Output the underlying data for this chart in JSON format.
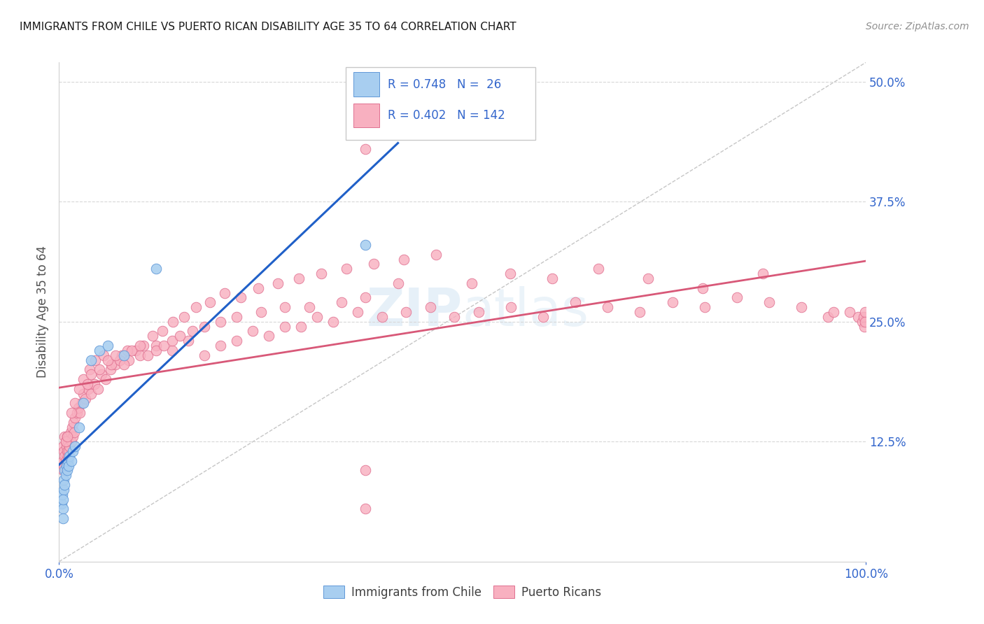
{
  "title": "IMMIGRANTS FROM CHILE VS PUERTO RICAN DISABILITY AGE 35 TO 64 CORRELATION CHART",
  "source": "Source: ZipAtlas.com",
  "ylabel": "Disability Age 35 to 64",
  "xlim": [
    0.0,
    1.0
  ],
  "ylim": [
    0.0,
    0.52
  ],
  "xtick_positions": [
    0.0,
    1.0
  ],
  "xtick_labels": [
    "0.0%",
    "100.0%"
  ],
  "ytick_positions": [
    0.125,
    0.25,
    0.375,
    0.5
  ],
  "ytick_labels": [
    "12.5%",
    "25.0%",
    "37.5%",
    "50.0%"
  ],
  "color_blue_fill": "#a8cef0",
  "color_blue_edge": "#6098d8",
  "color_pink_fill": "#f8b0c0",
  "color_pink_edge": "#e07090",
  "color_line_blue": "#2060c8",
  "color_line_pink": "#d85878",
  "color_grid": "#d8d8d8",
  "color_diag": "#c0c0c0",
  "color_axis_text": "#3366cc",
  "color_title": "#1a1a1a",
  "color_source": "#909090",
  "color_ylabel": "#505050",
  "legend_text_color": "#3366cc",
  "watermark_color": "#c8e4f8",
  "background": "#ffffff",
  "blue_x": [
    0.003,
    0.004,
    0.005,
    0.005,
    0.006,
    0.006,
    0.007,
    0.007,
    0.008,
    0.009,
    0.01,
    0.011,
    0.012,
    0.013,
    0.015,
    0.017,
    0.02,
    0.025,
    0.03,
    0.04,
    0.05,
    0.06,
    0.08,
    0.12,
    0.38,
    0.005
  ],
  "blue_y": [
    0.06,
    0.07,
    0.055,
    0.045,
    0.085,
    0.075,
    0.095,
    0.08,
    0.09,
    0.1,
    0.095,
    0.105,
    0.1,
    0.11,
    0.105,
    0.115,
    0.12,
    0.14,
    0.165,
    0.21,
    0.22,
    0.225,
    0.215,
    0.305,
    0.33,
    0.065
  ],
  "pink_x": [
    0.005,
    0.005,
    0.005,
    0.006,
    0.006,
    0.007,
    0.007,
    0.008,
    0.008,
    0.009,
    0.009,
    0.01,
    0.01,
    0.011,
    0.011,
    0.012,
    0.012,
    0.013,
    0.014,
    0.015,
    0.016,
    0.017,
    0.018,
    0.019,
    0.02,
    0.022,
    0.024,
    0.026,
    0.028,
    0.03,
    0.033,
    0.036,
    0.04,
    0.044,
    0.048,
    0.053,
    0.058,
    0.064,
    0.07,
    0.078,
    0.086,
    0.095,
    0.105,
    0.116,
    0.128,
    0.141,
    0.155,
    0.17,
    0.187,
    0.205,
    0.225,
    0.247,
    0.271,
    0.297,
    0.325,
    0.356,
    0.39,
    0.427,
    0.467,
    0.511,
    0.559,
    0.611,
    0.668,
    0.73,
    0.798,
    0.872,
    0.953,
    0.98,
    0.99,
    0.995,
    0.997,
    0.998,
    0.999,
    0.999,
    0.038,
    0.045,
    0.055,
    0.065,
    0.075,
    0.085,
    0.1,
    0.12,
    0.14,
    0.16,
    0.18,
    0.2,
    0.22,
    0.24,
    0.26,
    0.28,
    0.3,
    0.32,
    0.34,
    0.37,
    0.4,
    0.43,
    0.46,
    0.49,
    0.52,
    0.56,
    0.6,
    0.64,
    0.68,
    0.72,
    0.76,
    0.8,
    0.84,
    0.88,
    0.92,
    0.96,
    0.008,
    0.01,
    0.015,
    0.02,
    0.025,
    0.03,
    0.035,
    0.04,
    0.05,
    0.06,
    0.07,
    0.08,
    0.09,
    0.1,
    0.11,
    0.12,
    0.13,
    0.14,
    0.15,
    0.165,
    0.18,
    0.2,
    0.22,
    0.25,
    0.28,
    0.31,
    0.35,
    0.38,
    0.38,
    0.42,
    0.38,
    0.38
  ],
  "pink_y": [
    0.105,
    0.12,
    0.095,
    0.115,
    0.1,
    0.13,
    0.11,
    0.125,
    0.105,
    0.12,
    0.1,
    0.115,
    0.13,
    0.11,
    0.125,
    0.115,
    0.13,
    0.12,
    0.135,
    0.125,
    0.14,
    0.13,
    0.145,
    0.135,
    0.15,
    0.155,
    0.16,
    0.155,
    0.165,
    0.175,
    0.17,
    0.18,
    0.175,
    0.185,
    0.18,
    0.195,
    0.19,
    0.2,
    0.205,
    0.215,
    0.21,
    0.22,
    0.225,
    0.235,
    0.24,
    0.25,
    0.255,
    0.265,
    0.27,
    0.28,
    0.275,
    0.285,
    0.29,
    0.295,
    0.3,
    0.305,
    0.31,
    0.315,
    0.32,
    0.29,
    0.3,
    0.295,
    0.305,
    0.295,
    0.285,
    0.3,
    0.255,
    0.26,
    0.255,
    0.25,
    0.255,
    0.245,
    0.26,
    0.25,
    0.2,
    0.21,
    0.215,
    0.205,
    0.21,
    0.22,
    0.215,
    0.225,
    0.22,
    0.23,
    0.215,
    0.225,
    0.23,
    0.24,
    0.235,
    0.245,
    0.245,
    0.255,
    0.25,
    0.26,
    0.255,
    0.26,
    0.265,
    0.255,
    0.26,
    0.265,
    0.255,
    0.27,
    0.265,
    0.26,
    0.27,
    0.265,
    0.275,
    0.27,
    0.265,
    0.26,
    0.125,
    0.13,
    0.155,
    0.165,
    0.18,
    0.19,
    0.185,
    0.195,
    0.2,
    0.21,
    0.215,
    0.205,
    0.22,
    0.225,
    0.215,
    0.22,
    0.225,
    0.23,
    0.235,
    0.24,
    0.245,
    0.25,
    0.255,
    0.26,
    0.265,
    0.265,
    0.27,
    0.275,
    0.43,
    0.29,
    0.095,
    0.055
  ]
}
